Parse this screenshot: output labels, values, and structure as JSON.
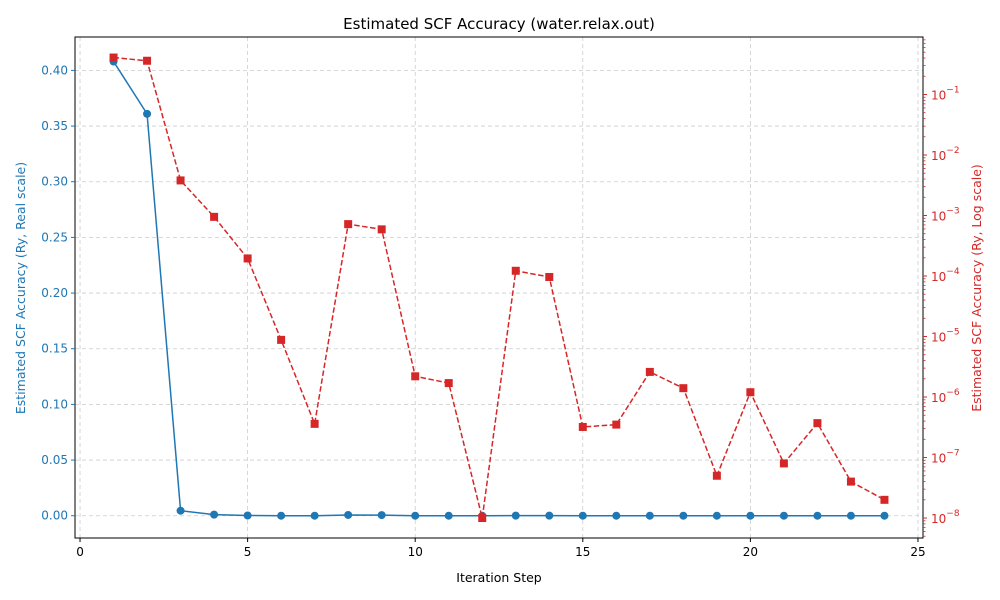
{
  "chart_data": {
    "type": "line",
    "title": "Estimated SCF Accuracy (water.relax.out)",
    "xlabel": "Iteration Step",
    "ylabel_left": "Estimated SCF Accuracy (Ry, Real scale)",
    "ylabel_right": "Estimated SCF Accuracy (Ry, Log scale)",
    "xlim": [
      -0.15,
      25.15
    ],
    "ylim_left": [
      -0.02,
      0.43
    ],
    "ylim_right_log10": [
      -8.33,
      -0.05
    ],
    "left_scale": "linear",
    "right_scale": "log",
    "grid": true,
    "x_ticks": [
      0,
      5,
      10,
      15,
      20,
      25
    ],
    "x_tick_labels": [
      "0",
      "5",
      "10",
      "15",
      "20",
      "25"
    ],
    "y_left_ticks": [
      0,
      0.05,
      0.1,
      0.15,
      0.2,
      0.25,
      0.3,
      0.35,
      0.4
    ],
    "y_left_tick_labels": [
      "0.00",
      "0.05",
      "0.10",
      "0.15",
      "0.20",
      "0.25",
      "0.30",
      "0.35",
      "0.40"
    ],
    "y_right_ticks_exp": [
      -1,
      -2,
      -3,
      -4,
      -5,
      -6,
      -7,
      -8
    ],
    "y_right_tick_labels": [
      "10",
      "10",
      "10",
      "10",
      "10",
      "10",
      "10",
      "10"
    ],
    "y_right_tick_exponents": [
      "−1",
      "−2",
      "−3",
      "−4",
      "−5",
      "−6",
      "−7",
      "−8"
    ],
    "x": [
      1,
      2,
      3,
      4,
      5,
      6,
      7,
      8,
      9,
      10,
      11,
      12,
      13,
      14,
      15,
      16,
      17,
      18,
      19,
      20,
      21,
      22,
      23,
      24
    ],
    "series": [
      {
        "axis": "left",
        "color": "#1f77b4",
        "linestyle": "solid",
        "marker": "circle",
        "values": [
          0.408,
          0.361,
          0.0045,
          0.001,
          0.0002,
          1e-05,
          4e-06,
          0.0007,
          0.0006,
          2e-05,
          2e-05,
          1e-08,
          0.0001,
          0.0001,
          3e-07,
          4e-07,
          3e-06,
          1.4e-06,
          5e-08,
          1.2e-06,
          8e-08,
          4e-07,
          4e-08,
          2e-08
        ]
      },
      {
        "axis": "right",
        "color": "#d62728",
        "linestyle": "dashed",
        "marker": "square",
        "values": [
          0.408,
          0.361,
          0.0038,
          0.00095,
          0.000195,
          8.8e-06,
          3.6e-07,
          0.00072,
          0.00059,
          2.2e-06,
          1.7e-06,
          1e-08,
          0.000122,
          9.63e-05,
          3.2e-07,
          3.5e-07,
          2.6e-06,
          1.4e-06,
          5e-08,
          1.2e-06,
          8e-08,
          3.7e-07,
          4e-08,
          2e-08
        ]
      }
    ]
  }
}
